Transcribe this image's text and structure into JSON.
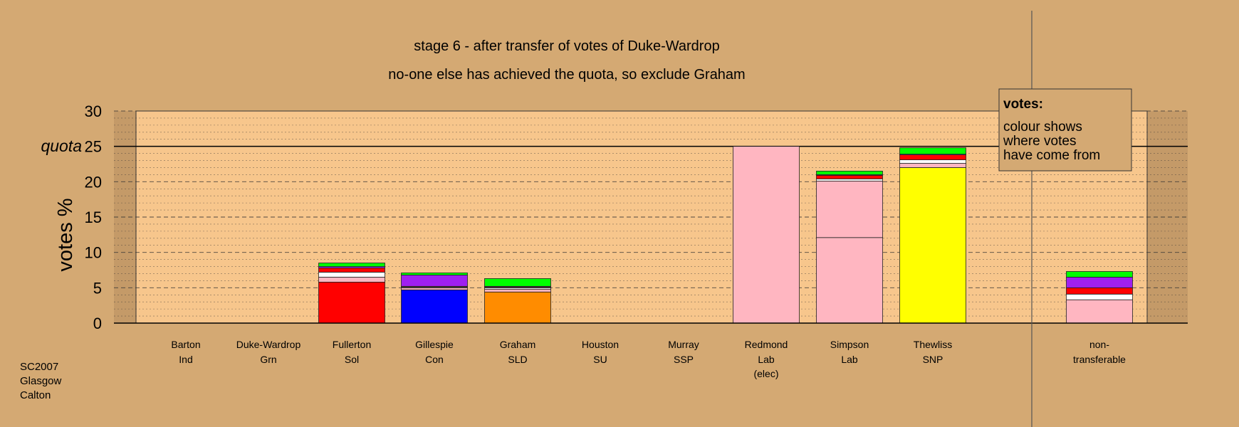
{
  "chart_data": {
    "type": "bar",
    "title": "stage 6 - after transfer of votes of Duke-Wardrop",
    "subtitle": "no-one else has achieved the quota, so exclude Graham",
    "ylabel": "votes %",
    "ylim": [
      0,
      30
    ],
    "yticks": [
      0,
      5,
      10,
      15,
      20,
      25,
      30
    ],
    "quota": 25,
    "quota_label": "quota",
    "grid": true,
    "legend_placement": "top-right",
    "legend": {
      "title": "votes:",
      "lines": [
        "colour shows",
        "where votes",
        "have come from"
      ]
    },
    "footer": [
      "SC2007",
      "Glasgow",
      "Calton"
    ],
    "candidates": [
      {
        "name": "Barton",
        "party": "Ind",
        "segments": []
      },
      {
        "name": "Duke-Wardrop",
        "party": "Grn",
        "segments": []
      },
      {
        "name": "Fullerton",
        "party": "Sol",
        "segments": [
          {
            "v": 5.8,
            "color": "#ff0000"
          },
          {
            "v": 0.7,
            "color": "#ffb6c1"
          },
          {
            "v": 0.7,
            "color": "#ffffff"
          },
          {
            "v": 0.6,
            "color": "#ff0000"
          },
          {
            "v": 0.2,
            "color": "#a020f0"
          },
          {
            "v": 0.5,
            "color": "#00ff00"
          }
        ]
      },
      {
        "name": "Gillespie",
        "party": "Con",
        "segments": [
          {
            "v": 4.7,
            "color": "#0000ff"
          },
          {
            "v": 0.3,
            "color": "#ffb6c1"
          },
          {
            "v": 0.1,
            "color": "#ffffff"
          },
          {
            "v": 0.1,
            "color": "#ff0000"
          },
          {
            "v": 1.6,
            "color": "#a020f0"
          },
          {
            "v": 0.3,
            "color": "#00ff00"
          }
        ]
      },
      {
        "name": "Graham",
        "party": "SLD",
        "segments": [
          {
            "v": 4.4,
            "color": "#ff8c00"
          },
          {
            "v": 0.4,
            "color": "#ffb6c1"
          },
          {
            "v": 0.2,
            "color": "#ffffff"
          },
          {
            "v": 0.1,
            "color": "#ff0000"
          },
          {
            "v": 0.1,
            "color": "#a020f0"
          },
          {
            "v": 1.1,
            "color": "#00ff00"
          }
        ]
      },
      {
        "name": "Houston",
        "party": "SU",
        "segments": []
      },
      {
        "name": "Murray",
        "party": "SSP",
        "segments": []
      },
      {
        "name": "Redmond",
        "party": "Lab",
        "extra": "(elec)",
        "segments": [
          {
            "v": 25,
            "color": "#ffb6c1"
          }
        ]
      },
      {
        "name": "Simpson",
        "party": "Lab",
        "segments": [
          {
            "v": 12.1,
            "color": "#ffb6c1"
          },
          {
            "v": 8.0,
            "color": "#ffb6c1"
          },
          {
            "v": 0.3,
            "color": "#ffffff"
          },
          {
            "v": 0.5,
            "color": "#ff0000"
          },
          {
            "v": 0.1,
            "color": "#a020f0"
          },
          {
            "v": 0.5,
            "color": "#00ff00"
          }
        ]
      },
      {
        "name": "Thewliss",
        "party": "SNP",
        "segments": [
          {
            "v": 22.0,
            "color": "#ffff00"
          },
          {
            "v": 0.6,
            "color": "#ffb6c1"
          },
          {
            "v": 0.5,
            "color": "#ffffff"
          },
          {
            "v": 0.7,
            "color": "#ff0000"
          },
          {
            "v": 0.1,
            "color": "#a020f0"
          },
          {
            "v": 0.9,
            "color": "#00ff00"
          }
        ]
      },
      {
        "name": "non-",
        "party": "transferable",
        "segments": [
          {
            "v": 3.3,
            "color": "#ffb6c1"
          },
          {
            "v": 0.8,
            "color": "#ffffff"
          },
          {
            "v": 0.9,
            "color": "#ff0000"
          },
          {
            "v": 1.5,
            "color": "#a020f0"
          },
          {
            "v": 0.8,
            "color": "#00ff00"
          }
        ]
      }
    ]
  }
}
